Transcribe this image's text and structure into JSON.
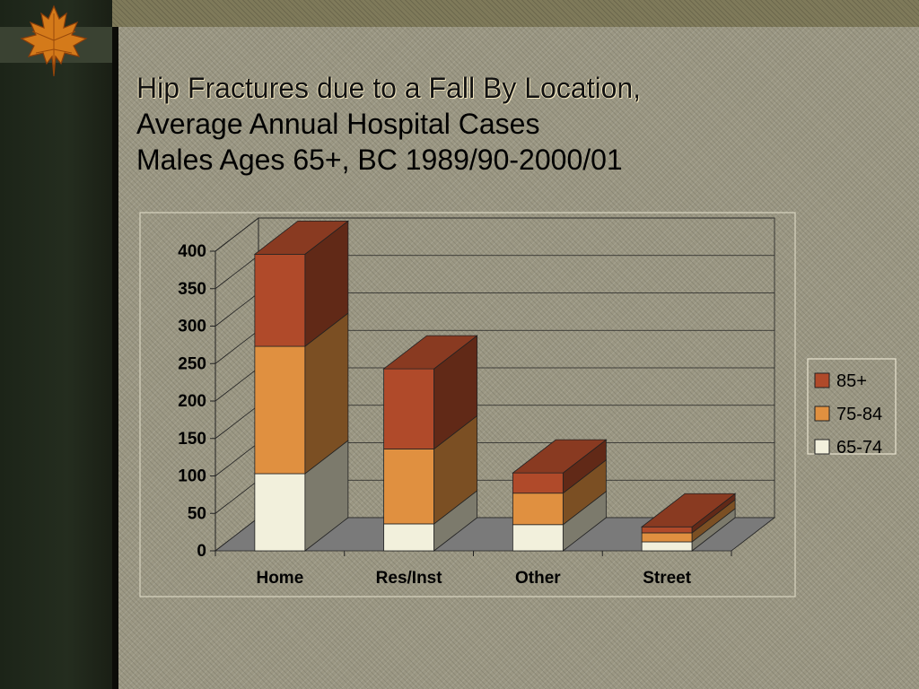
{
  "title": {
    "line1": "Hip Fractures due to a Fall By Location,",
    "line2": "Average Annual Hospital Cases",
    "line3": "Males Ages 65+, BC 1989/90-2000/01"
  },
  "chart_data": {
    "type": "bar",
    "stacked": true,
    "three_d": true,
    "categories": [
      "Home",
      "Res/Inst",
      "Other",
      "Street"
    ],
    "series": [
      {
        "name": "65-74",
        "values": [
          103,
          36,
          35,
          12
        ],
        "color": "#f2f0dc"
      },
      {
        "name": "75-84",
        "values": [
          170,
          100,
          42,
          12
        ],
        "color": "#e09040"
      },
      {
        "name": "85+",
        "values": [
          123,
          107,
          27,
          8
        ],
        "color": "#b04a2a"
      }
    ],
    "ylim": [
      0,
      400
    ],
    "yticks": [
      "0",
      "50",
      "100",
      "150",
      "200",
      "250",
      "300",
      "350",
      "400"
    ],
    "grid": true,
    "legend_position": "right",
    "legend": [
      "85+",
      "75-84",
      "65-74"
    ]
  }
}
